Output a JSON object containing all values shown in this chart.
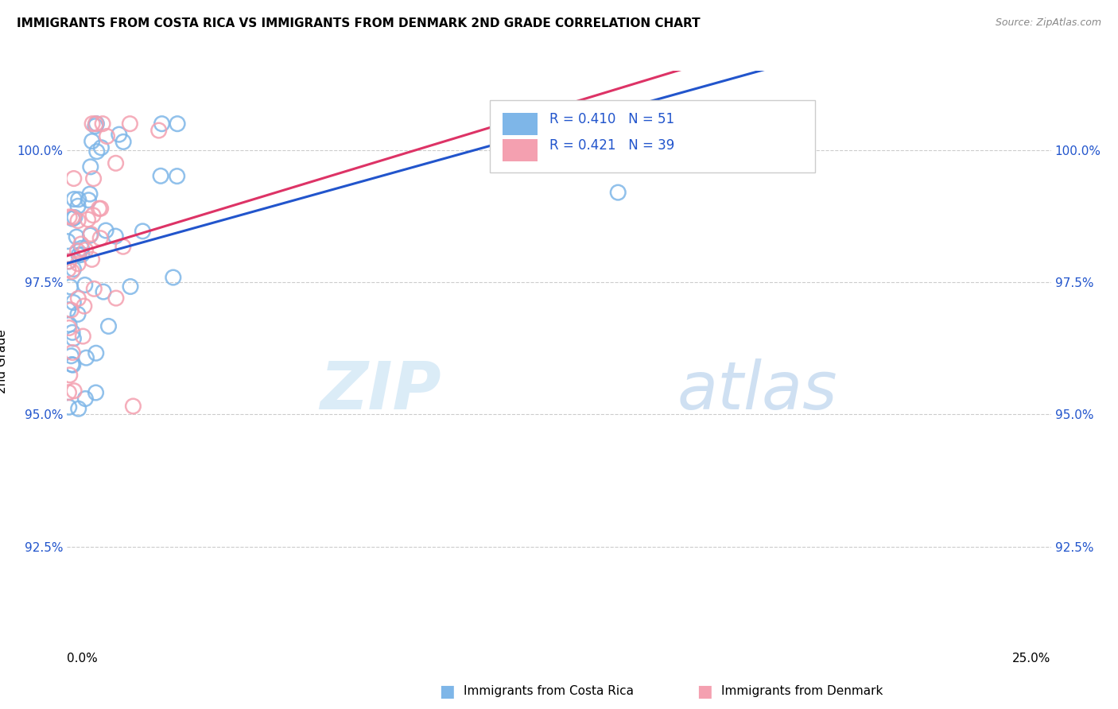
{
  "title": "IMMIGRANTS FROM COSTA RICA VS IMMIGRANTS FROM DENMARK 2ND GRADE CORRELATION CHART",
  "source": "Source: ZipAtlas.com",
  "ylabel": "2nd Grade",
  "ytick_labels": [
    "92.5%",
    "95.0%",
    "97.5%",
    "100.0%"
  ],
  "ytick_values": [
    92.5,
    95.0,
    97.5,
    100.0
  ],
  "xlim": [
    0.0,
    25.0
  ],
  "ylim": [
    90.5,
    101.5
  ],
  "legend_blue_label": "Immigrants from Costa Rica",
  "legend_pink_label": "Immigrants from Denmark",
  "R_blue": 0.41,
  "N_blue": 51,
  "R_pink": 0.421,
  "N_pink": 39,
  "blue_color": "#7EB6E8",
  "pink_color": "#F4A0B0",
  "blue_line_color": "#2255CC",
  "pink_line_color": "#DD3366",
  "watermark_zip": "ZIP",
  "watermark_atlas": "atlas",
  "background_color": "#ffffff"
}
